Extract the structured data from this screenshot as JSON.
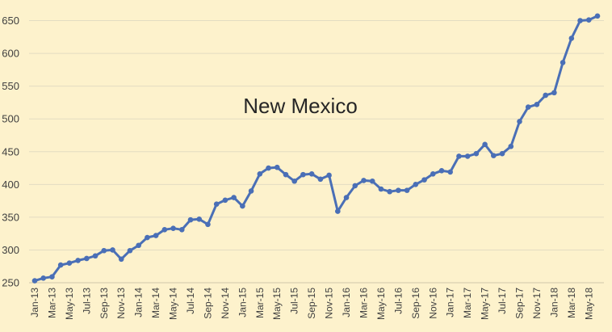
{
  "chart_data": {
    "type": "line",
    "title": "New Mexico",
    "xlabel": "",
    "ylabel": "",
    "ylim": [
      250,
      660
    ],
    "yticks": [
      250,
      300,
      350,
      400,
      450,
      500,
      550,
      600,
      650
    ],
    "grid": true,
    "legend": "none",
    "x": [
      "Jan-13",
      "Feb-13",
      "Mar-13",
      "Apr-13",
      "May-13",
      "Jun-13",
      "Jul-13",
      "Aug-13",
      "Sep-13",
      "Oct-13",
      "Nov-13",
      "Dec-13",
      "Jan-14",
      "Feb-14",
      "Mar-14",
      "Apr-14",
      "May-14",
      "Jun-14",
      "Jul-14",
      "Aug-14",
      "Sep-14",
      "Oct-14",
      "Nov-14",
      "Dec-14",
      "Jan-15",
      "Feb-15",
      "Mar-15",
      "Apr-15",
      "May-15",
      "Jun-15",
      "Jul-15",
      "Aug-15",
      "Sep-15",
      "Oct-15",
      "Nov-15",
      "Dec-15",
      "Jan-16",
      "Feb-16",
      "Mar-16",
      "Apr-16",
      "May-16",
      "Jun-16",
      "Jul-16",
      "Aug-16",
      "Sep-16",
      "Oct-16",
      "Nov-16",
      "Dec-16",
      "Jan-17",
      "Feb-17",
      "Mar-17",
      "Apr-17",
      "May-17",
      "Jun-17",
      "Jul-17",
      "Aug-17",
      "Sep-17",
      "Oct-17",
      "Nov-17",
      "Dec-17",
      "Jan-18",
      "Feb-18",
      "Mar-18",
      "Apr-18",
      "May-18",
      "Jun-18"
    ],
    "series": [
      {
        "values": [
          253,
          257,
          259,
          277,
          280,
          284,
          287,
          291,
          299,
          300,
          286,
          299,
          307,
          319,
          322,
          331,
          333,
          331,
          346,
          347,
          339,
          370,
          376,
          380,
          367,
          390,
          416,
          425,
          426,
          415,
          405,
          415,
          416,
          408,
          414,
          359,
          380,
          398,
          406,
          405,
          393,
          389,
          391,
          391,
          400,
          407,
          416,
          421,
          419,
          443,
          443,
          447,
          461,
          444,
          447,
          458,
          496,
          518,
          522,
          536,
          540,
          586,
          623,
          650,
          651,
          657
        ]
      }
    ],
    "colors": {
      "line": "#4a6fb6",
      "grid": "#e3dcc2",
      "background": "#fdf2cc"
    }
  }
}
